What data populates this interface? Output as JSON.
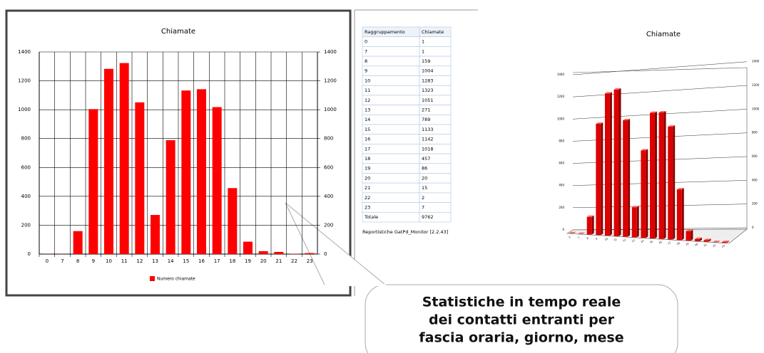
{
  "chart_data": [
    {
      "type": "bar",
      "title": "Chiamate",
      "categories": [
        "0",
        "7",
        "8",
        "9",
        "10",
        "11",
        "12",
        "13",
        "14",
        "15",
        "16",
        "17",
        "18",
        "19",
        "20",
        "21",
        "22",
        "23"
      ],
      "series": [
        {
          "name": "Numero chiamate",
          "color": "#ff0000",
          "values": [
            1,
            1,
            159,
            1004,
            1283,
            1323,
            1051,
            271,
            789,
            1133,
            1142,
            1018,
            457,
            86,
            20,
            15,
            2,
            7
          ]
        }
      ],
      "ylim": [
        0,
        1400
      ],
      "yticks": [
        0,
        200,
        400,
        600,
        800,
        1000,
        1200,
        1400
      ],
      "y2lim": [
        0,
        1400
      ],
      "y2ticks": [
        0,
        200,
        400,
        600,
        800,
        1000,
        1200,
        1400
      ],
      "grid": true,
      "legend": "bottom"
    },
    {
      "type": "bar3d",
      "title": "Chiamate",
      "categories": [
        "0",
        "7",
        "8",
        "9",
        "10",
        "11",
        "12",
        "13",
        "14",
        "15",
        "16",
        "17",
        "18",
        "19",
        "20",
        "21",
        "22",
        "23"
      ],
      "series": [
        {
          "color": "#dd0000",
          "values": [
            1,
            1,
            159,
            1004,
            1283,
            1323,
            1051,
            271,
            789,
            1133,
            1142,
            1018,
            457,
            86,
            20,
            15,
            2,
            7
          ]
        }
      ],
      "ylim": [
        0,
        1400
      ],
      "yticks": [
        0,
        200,
        400,
        600,
        800,
        1000,
        1200,
        1400
      ],
      "grid": true
    }
  ],
  "table": {
    "header": [
      "Raggruppamento",
      "Chiamate"
    ],
    "rows": [
      [
        "0",
        1
      ],
      [
        "7",
        1
      ],
      [
        "8",
        159
      ],
      [
        "9",
        1004
      ],
      [
        "10",
        1283
      ],
      [
        "11",
        1323
      ],
      [
        "12",
        1051
      ],
      [
        "13",
        271
      ],
      [
        "14",
        789
      ],
      [
        "15",
        1133
      ],
      [
        "16",
        1142
      ],
      [
        "17",
        1018
      ],
      [
        "18",
        457
      ],
      [
        "19",
        86
      ],
      [
        "20",
        20
      ],
      [
        "21",
        15
      ],
      [
        "22",
        2
      ],
      [
        "23",
        7
      ]
    ],
    "total": [
      "Totale",
      9762
    ],
    "footer": "Reportistiche GatPd_Monitor [2.2.43]"
  },
  "callout": {
    "lines": [
      "Statistiche in tempo reale",
      "dei contatti entranti per",
      "fascia oraria, giorno, mese"
    ]
  }
}
